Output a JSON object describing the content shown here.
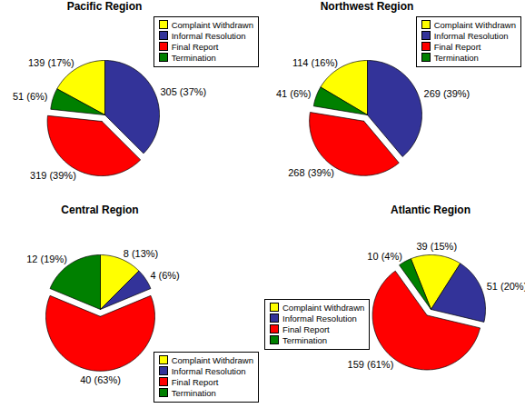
{
  "chart_data": [
    {
      "type": "pie",
      "title": "Pacific Region",
      "categories": [
        "Complaint Withdrawn",
        "Informal Resolution",
        "Final Report",
        "Termination"
      ],
      "values": [
        139,
        305,
        319,
        51
      ],
      "value_labels": [
        "139 (17%)",
        "305 (37%)",
        "319 (39%)",
        "51 (6%)"
      ],
      "colors": [
        "#ffff00",
        "#333399",
        "#ff0000",
        "#008000"
      ],
      "legend": "top-right",
      "data_labels": true
    },
    {
      "type": "pie",
      "title": "Northwest Region",
      "categories": [
        "Complaint Withdrawn",
        "Informal Resolution",
        "Final Report",
        "Termination"
      ],
      "values": [
        114,
        269,
        268,
        41
      ],
      "value_labels": [
        "114 (16%)",
        "269 (39%)",
        "268 (39%)",
        "41 (6%)"
      ],
      "colors": [
        "#ffff00",
        "#333399",
        "#ff0000",
        "#008000"
      ],
      "legend": "top-right",
      "data_labels": true
    },
    {
      "type": "pie",
      "title": "Central Region",
      "categories": [
        "Complaint Withdrawn",
        "Informal Resolution",
        "Final Report",
        "Termination"
      ],
      "values": [
        8,
        4,
        40,
        12
      ],
      "value_labels": [
        "8 (13%)",
        "4 (6%)",
        "40 (63%)",
        "12 (19%)"
      ],
      "colors": [
        "#ffff00",
        "#333399",
        "#ff0000",
        "#008000"
      ],
      "legend": "bottom-right",
      "data_labels": true
    },
    {
      "type": "pie",
      "title": "Atlantic Region",
      "categories": [
        "Complaint Withdrawn",
        "Informal Resolution",
        "Final Report",
        "Termination"
      ],
      "values": [
        39,
        51,
        159,
        10
      ],
      "value_labels": [
        "39 (15%)",
        "51 (20%)",
        "159 (61%)",
        "10 (4%)"
      ],
      "colors": [
        "#ffff00",
        "#333399",
        "#ff0000",
        "#008000"
      ],
      "legend": "bottom-left",
      "data_labels": true
    }
  ]
}
